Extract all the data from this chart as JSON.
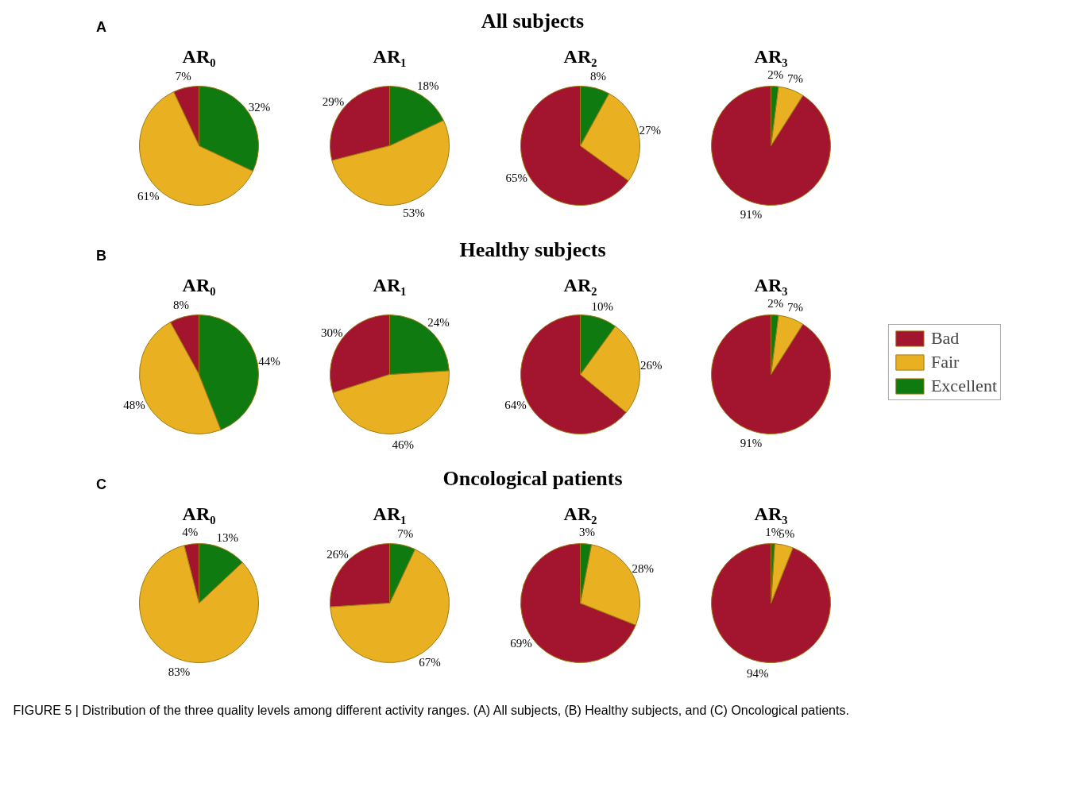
{
  "chart_data": [
    {
      "type": "other",
      "title": "All subjects",
      "annotations": [
        "A"
      ]
    },
    {
      "type": "pie",
      "title": "AR₀",
      "categories": [
        null,
        null,
        null
      ],
      "values": [
        7,
        61,
        32
      ],
      "value_labels": [
        "7%",
        "61%",
        "32%"
      ],
      "colors": [
        "#a3152e",
        "#e9b022",
        "#0f7a10"
      ]
    },
    {
      "type": "pie",
      "title": "AR₁",
      "categories": [
        null,
        null,
        null
      ],
      "values": [
        29,
        53,
        18
      ],
      "value_labels": [
        "29%",
        "53%",
        "18%"
      ],
      "colors": [
        "#a3152e",
        "#e9b022",
        "#0f7a10"
      ]
    },
    {
      "type": "pie",
      "title": "AR₂",
      "categories": [
        null,
        null,
        null
      ],
      "values": [
        65,
        27,
        8
      ],
      "value_labels": [
        "65%",
        "27%",
        "8%"
      ],
      "colors": [
        "#a3152e",
        "#e9b022",
        "#0f7a10"
      ]
    },
    {
      "type": "pie",
      "title": "AR₃",
      "categories": [
        null,
        null,
        null
      ],
      "values": [
        91,
        7,
        2
      ],
      "value_labels": [
        "91%",
        "7%",
        "2%"
      ],
      "colors": [
        "#a3152e",
        "#e9b022",
        "#0f7a10"
      ]
    },
    {
      "type": "other",
      "title": "Healthy subjects",
      "annotations": [
        "B"
      ]
    },
    {
      "type": "pie",
      "title": "AR₀",
      "categories": [
        null,
        null,
        null
      ],
      "values": [
        8,
        48,
        44
      ],
      "value_labels": [
        "8%",
        "48%",
        "44%"
      ],
      "colors": [
        "#a3152e",
        "#e9b022",
        "#0f7a10"
      ]
    },
    {
      "type": "pie",
      "title": "AR₁",
      "categories": [
        null,
        null,
        null
      ],
      "values": [
        30,
        46,
        24
      ],
      "value_labels": [
        "30%",
        "46%",
        "24%"
      ],
      "colors": [
        "#a3152e",
        "#e9b022",
        "#0f7a10"
      ]
    },
    {
      "type": "pie",
      "title": "AR₂",
      "categories": [
        null,
        null,
        null
      ],
      "values": [
        64,
        26,
        10
      ],
      "value_labels": [
        "64%",
        "26%",
        "10%"
      ],
      "colors": [
        "#a3152e",
        "#e9b022",
        "#0f7a10"
      ]
    },
    {
      "type": "pie",
      "title": "AR₃",
      "categories": [
        "Bad",
        "Fair",
        "Excellent"
      ],
      "values": [
        91,
        7,
        2
      ],
      "value_labels": [
        "91%",
        "7%",
        "2%"
      ],
      "colors": [
        "#a3152e",
        "#e9b022",
        "#0f7a10"
      ],
      "legend": "right"
    },
    {
      "type": "other",
      "title": "Oncological patients",
      "annotations": [
        "C"
      ]
    },
    {
      "type": "pie",
      "title": "AR₀",
      "categories": [
        null,
        null,
        null
      ],
      "values": [
        4,
        83,
        13
      ],
      "value_labels": [
        "4%",
        "83%",
        "13%"
      ],
      "colors": [
        "#a3152e",
        "#e9b022",
        "#0f7a10"
      ]
    },
    {
      "type": "pie",
      "title": "AR₁",
      "categories": [
        null,
        null,
        null
      ],
      "values": [
        26,
        67,
        7
      ],
      "value_labels": [
        "26%",
        "67%",
        "7%"
      ],
      "colors": [
        "#a3152e",
        "#e9b022",
        "#0f7a10"
      ]
    },
    {
      "type": "pie",
      "title": "AR₂",
      "categories": [
        null,
        null,
        null
      ],
      "values": [
        69,
        28,
        3
      ],
      "value_labels": [
        "69%",
        "28%",
        "3%"
      ],
      "colors": [
        "#a3152e",
        "#e9b022",
        "#0f7a10"
      ]
    },
    {
      "type": "pie",
      "title": "AR₃",
      "categories": [
        null,
        null,
        null
      ],
      "values": [
        94,
        5,
        1
      ],
      "value_labels": [
        "94%",
        "5%",
        "1%"
      ],
      "colors": [
        "#a3152e",
        "#e9b022",
        "#0f7a10"
      ]
    },
    {
      "type": "other",
      "annotations": [
        "FIGURE 5 | Distribution of the three quality levels among different activity ranges. (A) All subjects, (B) Healthy subjects, and (C) Oncological patients."
      ]
    }
  ]
}
